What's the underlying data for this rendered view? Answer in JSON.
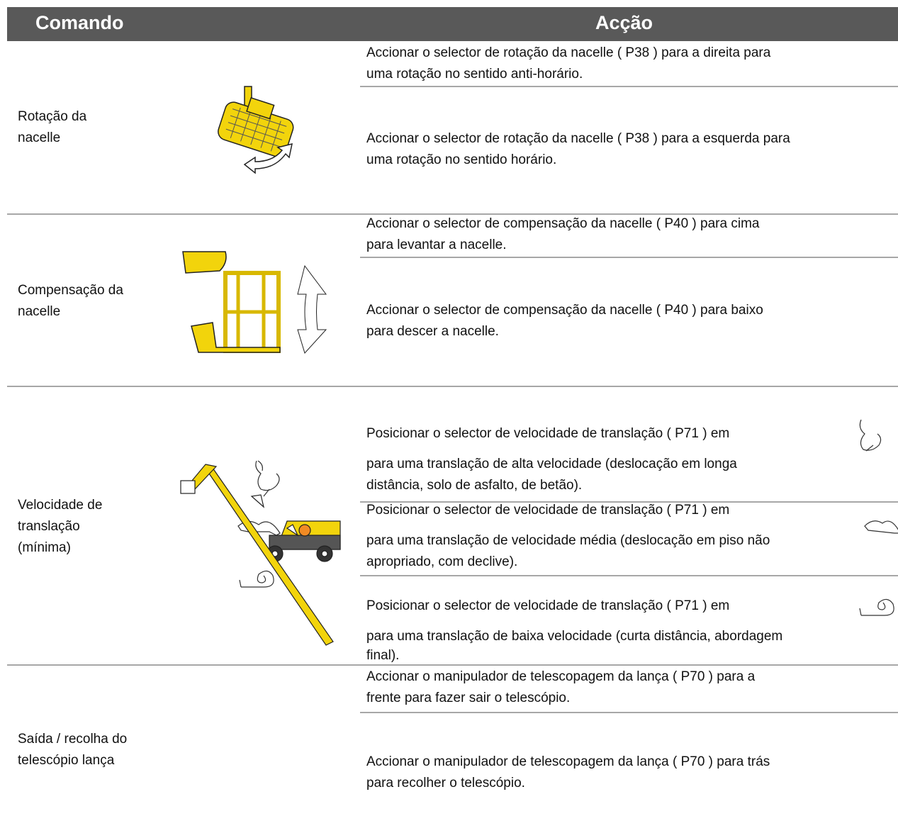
{
  "header": {
    "columns": [
      "Comando",
      "Acção"
    ]
  },
  "rows": [
    {
      "command": [
        "Rotação da",
        "nacelle"
      ],
      "actions": [
        [
          "Accionar o selector de rotação da nacelle ( P38 ) para a direita para",
          "uma rotação no sentido anti-horário."
        ],
        [
          "Accionar o selector de rotação da nacelle ( P38 ) para a esquerda para",
          "uma rotação no sentido horário."
        ]
      ]
    },
    {
      "command": [
        "Compensação da",
        "nacelle"
      ],
      "actions": [
        [
          "Accionar o selector de compensação da nacelle ( P40 ) para cima",
          "para levantar a nacelle."
        ],
        [
          "Accionar o selector de compensação da nacelle ( P40 ) para baixo",
          "para descer a nacelle."
        ]
      ]
    },
    {
      "command": [
        "Velocidade de",
        "translação",
        "(mínima)"
      ],
      "actions": [
        [
          "Posicionar o selector de velocidade de translação ( P71 ) em",
          "para uma translação de alta velocidade (deslocação em longa",
          "distância, solo de asfalto, de betão)."
        ],
        [
          "Posicionar o selector de velocidade de translação ( P71 ) em",
          "para uma translação de velocidade média (deslocação em piso não",
          "apropriado, com declive)."
        ],
        [
          "Posicionar o selector de velocidade de translação ( P71 ) em",
          "para uma translação de baixa velocidade (curta distância, abordagem",
          "final)."
        ]
      ]
    },
    {
      "command": [
        "Saída / recolha do",
        "telescópio lança"
      ],
      "actions": [
        [
          "Accionar o manipulador de telescopagem da lança ( P70 ) para a",
          "frente para fazer sair o telescópio."
        ],
        [
          "Accionar o manipulador de telescopagem da lança ( P70 ) para trás",
          "para recolher o telescópio."
        ]
      ]
    }
  ]
}
